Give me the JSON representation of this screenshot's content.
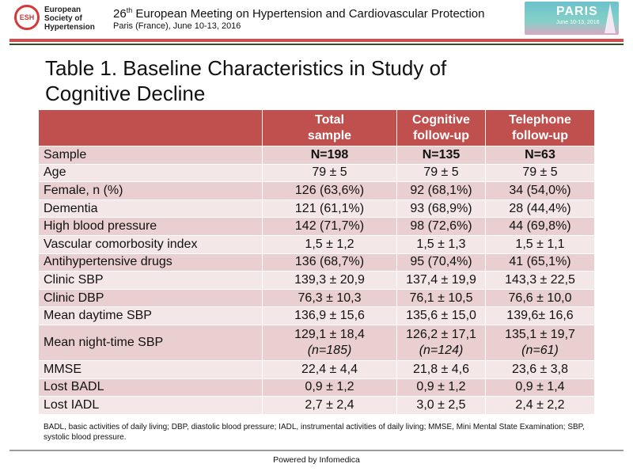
{
  "header": {
    "logo_abbr": "ESH",
    "logo_lines": [
      "European",
      "Society of",
      "Hypertension"
    ],
    "meeting_prefix": "26",
    "meeting_sup": "th",
    "meeting_rest": " European Meeting on Hypertension and Cardiovascular Protection",
    "meeting_sub": "Paris (France), June 10-13, 2016",
    "badge_word": "PARIS",
    "badge_date": "June 10-13, 2016",
    "accent_red": "#d64a47",
    "accent_green": "#2b4f2b"
  },
  "title": {
    "line1": "Table 1. Baseline Characteristics in Study of",
    "line2": "Cognitive Decline"
  },
  "table": {
    "header_color": "#c0504d",
    "columns": [
      {
        "line1": "",
        "line2": ""
      },
      {
        "line1": "Total",
        "line2": "sample"
      },
      {
        "line1": "Cognitive",
        "line2": "follow-up"
      },
      {
        "line1": "Telephone",
        "line2": "follow-up"
      }
    ],
    "rows": [
      {
        "label": "Sample",
        "total": "N=198",
        "cognitive": "N=135",
        "telephone": "N=63"
      },
      {
        "label": "Age",
        "total": "79 ± 5",
        "cognitive": "79 ± 5",
        "telephone": "79 ± 5"
      },
      {
        "label": "Female, n (%)",
        "total": "126 (63,6%)",
        "cognitive": "92 (68,1%)",
        "telephone": "34 (54,0%)"
      },
      {
        "label": "Dementia",
        "total": "121 (61,1%)",
        "cognitive": "93 (68,9%)",
        "telephone": "28 (44,4%)"
      },
      {
        "label": "High blood pressure",
        "total": "142 (71,7%)",
        "cognitive": "98 (72,6%)",
        "telephone": "44 (69,8%)"
      },
      {
        "label": "Vascular comorbosity index",
        "total": "1,5 ± 1,2",
        "cognitive": "1,5 ± 1,3",
        "telephone": "1,5 ± 1,1"
      },
      {
        "label": "Antihypertensive drugs",
        "total": "136 (68,7%)",
        "cognitive": "95 (70,4%)",
        "telephone": "41 (65,1%)"
      },
      {
        "label": "Clinic SBP",
        "total": "139,3 ± 20,9",
        "cognitive": "137,4 ± 19,9",
        "telephone": "143,3 ± 22,5"
      },
      {
        "label": "Clinic DBP",
        "total": "76,3 ± 10,3",
        "cognitive": "76,1 ± 10,5",
        "telephone": "76,6 ± 10,0"
      },
      {
        "label": "Mean daytime SBP",
        "total": "136,9 ± 15,6",
        "cognitive": "135,6 ± 15,0",
        "telephone": "139,6± 16,6"
      },
      {
        "label": "Mean night-time SBP",
        "total": "129,1 ± 18,4",
        "total_sub": "(n=185)",
        "cognitive": "126,2 ± 17,1",
        "cognitive_sub": "(n=124)",
        "telephone": "135,1 ± 19,7",
        "telephone_sub": "(n=61)"
      },
      {
        "label": "MMSE",
        "total": "22,4 ± 4,4",
        "cognitive": "21,8 ± 4,6",
        "telephone": "23,6 ± 3,8"
      },
      {
        "label": "Lost BADL",
        "total": "0,9 ± 1,2",
        "cognitive": "0,9 ± 1,2",
        "telephone": "0,9 ± 1,4"
      },
      {
        "label": "Lost IADL",
        "total": "2,7 ± 2,4",
        "cognitive": "3,0 ± 2,5",
        "telephone": "2,4 ± 2,2"
      }
    ]
  },
  "footnote": "BADL, basic activities of daily living; DBP, diastolic blood pressure; IADL, instrumental activities of daily living; MMSE, Mini Mental State Examination; SBP, systolic blood pressure.",
  "footer": "Powered by Infomedica"
}
